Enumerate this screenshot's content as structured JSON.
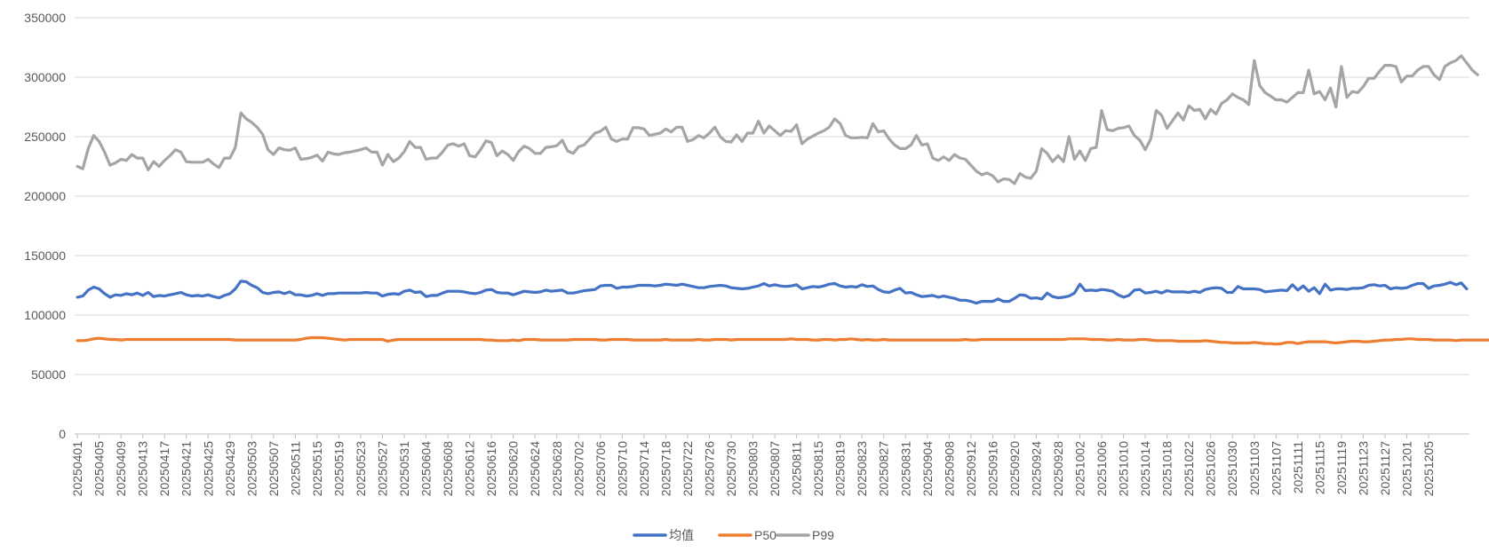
{
  "chart_data": {
    "type": "line",
    "title": "",
    "xlabel": "",
    "ylabel": "",
    "ylim": [
      0,
      350000
    ],
    "y_ticks": [
      0,
      50000,
      100000,
      150000,
      200000,
      250000,
      300000,
      350000
    ],
    "y_tick_labels": [
      "0",
      "50000",
      "100000",
      "150000",
      "200000",
      "250000",
      "300000",
      "350000"
    ],
    "grid": "horizontal",
    "legend_position": "bottom",
    "x_start": "2025-04-01",
    "x_end": "2025-12-08",
    "x_tick_labels": [
      "20250401",
      "20250405",
      "20250409",
      "20250413",
      "20250417",
      "20250421",
      "20250425",
      "20250429",
      "20250503",
      "20250507",
      "20250511",
      "20250515",
      "20250519",
      "20250523",
      "20250527",
      "20250531",
      "20250604",
      "20250608",
      "20250612",
      "20250616",
      "20250620",
      "20250624",
      "20250628",
      "20250702",
      "20250706",
      "20250710",
      "20250714",
      "20250718",
      "20250722",
      "20250726",
      "20250730",
      "20250803",
      "20250807",
      "20250811",
      "20250815",
      "20250819",
      "20250823",
      "20250827",
      "20250831",
      "20250904",
      "20250908",
      "20250912",
      "20250916",
      "20250920",
      "20250924",
      "20250928",
      "20251002",
      "20251006",
      "20251010",
      "20251014",
      "20251018",
      "20251022",
      "20251026",
      "20251030",
      "20251103",
      "20251107",
      "20251111",
      "20251115",
      "20251119",
      "20251123",
      "20251127",
      "20251201",
      "20251205"
    ],
    "series": [
      {
        "name": "均值",
        "color": "#4472C4",
        "values": [
          115000,
          116000,
          121000,
          123500,
          122000,
          118000,
          115000,
          117000,
          116500,
          118000,
          117000,
          118500,
          116500,
          119000,
          115500,
          116500,
          116000,
          117000,
          118000,
          119000,
          117000,
          116000,
          116500,
          116000,
          117000,
          115500,
          114500,
          116500,
          118000,
          122000,
          128500,
          128000,
          125000,
          123000,
          119000,
          118000,
          119000,
          119500,
          118000,
          119500,
          117000,
          117000,
          116000,
          116500,
          118000,
          116500,
          118000,
          118000,
          118500,
          118500,
          118500,
          118500,
          118500,
          119000,
          118500,
          118500,
          116000,
          117500,
          118000,
          117500,
          120000,
          121000,
          119000,
          119500,
          115500,
          116500,
          116500,
          118500,
          120000,
          120000,
          120000,
          119500,
          118500,
          118000,
          119000,
          121000,
          121500,
          119000,
          118500,
          118500,
          117000,
          118500,
          120000,
          119500,
          119000,
          119500,
          121000,
          120000,
          120500,
          121000,
          118500,
          118500,
          119500,
          120500,
          121000,
          121500,
          124500,
          125000,
          125000,
          122500,
          123500,
          123500,
          124000,
          125000,
          125000,
          125000,
          124500,
          125000,
          126000,
          125500,
          125000,
          126000,
          125000,
          124000,
          123000,
          123000,
          124000,
          124500,
          125000,
          124500,
          123000,
          122500,
          122000,
          122500,
          123500,
          124500,
          126500,
          124500,
          125500,
          124500,
          124000,
          124500,
          125500,
          122000,
          123000,
          124000,
          123500,
          124500,
          126000,
          126500,
          124500,
          123500,
          124000,
          123500,
          125500,
          124000,
          124500,
          121500,
          119500,
          119000,
          121000,
          122500,
          118500,
          119000,
          117000,
          115500,
          116000,
          116500,
          115000,
          116000,
          115000,
          114000,
          112500,
          112500,
          111500,
          110000,
          111500,
          111500,
          111500,
          113500,
          111500,
          111500,
          114000,
          117000,
          116500,
          114000,
          114500,
          113500,
          118500,
          115500,
          114500,
          115000,
          116000,
          118500,
          126000,
          120500,
          121000,
          120500,
          121500,
          121000,
          120000,
          117000,
          115000,
          116500,
          121000,
          121500,
          118500,
          119000,
          120000,
          118500,
          120500,
          119500,
          119500,
          119500,
          119000,
          120000,
          119000,
          121500,
          122500,
          123000,
          122500,
          119000,
          119000,
          124000,
          122000,
          122000,
          122000,
          121500,
          119500,
          120000,
          120500,
          121000,
          120500,
          125500,
          121000,
          124500,
          120000,
          123000,
          118000,
          126000,
          121000,
          122000,
          122000,
          121500,
          122500,
          122500,
          123000,
          125000,
          125500,
          124500,
          125000,
          122000,
          123000,
          122500,
          123000,
          125000,
          126500,
          126500,
          122500,
          124500,
          125000,
          126000,
          127500,
          125500,
          127000,
          122000
        ]
      },
      {
        "name": "P50",
        "color": "#ED7D31",
        "values": [
          78500,
          78500,
          79000,
          80000,
          80500,
          80000,
          79500,
          79500,
          79000,
          79500,
          79500,
          79500,
          79500,
          79500,
          79500,
          79500,
          79500,
          79500,
          79500,
          79500,
          79500,
          79500,
          79500,
          79500,
          79500,
          79500,
          79500,
          79500,
          79500,
          79000,
          79000,
          79000,
          79000,
          79000,
          79000,
          79000,
          79000,
          79000,
          79000,
          79000,
          79000,
          79500,
          80500,
          81000,
          81000,
          81000,
          80500,
          80000,
          79500,
          79000,
          79500,
          79500,
          79500,
          79500,
          79500,
          79500,
          79500,
          78000,
          79000,
          79500,
          79500,
          79500,
          79500,
          79500,
          79500,
          79500,
          79500,
          79500,
          79500,
          79500,
          79500,
          79500,
          79500,
          79500,
          79500,
          79000,
          79000,
          78500,
          78500,
          78500,
          79000,
          78500,
          79500,
          79500,
          79500,
          79000,
          79000,
          79000,
          79000,
          79000,
          79000,
          79500,
          79500,
          79500,
          79500,
          79500,
          79000,
          79000,
          79500,
          79500,
          79500,
          79500,
          79000,
          79000,
          79000,
          79000,
          79000,
          79000,
          79500,
          79000,
          79000,
          79000,
          79000,
          79000,
          79500,
          79000,
          79000,
          79500,
          79500,
          79500,
          79000,
          79500,
          79500,
          79500,
          79500,
          79500,
          79500,
          79500,
          79500,
          79500,
          79500,
          80000,
          79500,
          79500,
          79500,
          79000,
          79000,
          79500,
          79500,
          79000,
          79500,
          79500,
          80000,
          79500,
          79000,
          79500,
          79000,
          79000,
          79500,
          79000,
          79000,
          79000,
          79000,
          79000,
          79000,
          79000,
          79000,
          79000,
          79000,
          79000,
          79000,
          79000,
          79000,
          79500,
          79000,
          79000,
          79500,
          79500,
          79500,
          79500,
          79500,
          79500,
          79500,
          79500,
          79500,
          79500,
          79500,
          79500,
          79500,
          79500,
          79500,
          79500,
          80000,
          80000,
          80000,
          80000,
          79500,
          79500,
          79500,
          79000,
          79000,
          79500,
          79000,
          79000,
          79000,
          79500,
          79500,
          79000,
          78500,
          78500,
          78500,
          78500,
          78000,
          78000,
          78000,
          78000,
          78000,
          78500,
          78000,
          77500,
          77000,
          77000,
          76500,
          76500,
          76500,
          76500,
          77000,
          76500,
          76000,
          76000,
          75500,
          76000,
          77000,
          77000,
          76000,
          77000,
          77500,
          77500,
          77500,
          77500,
          77000,
          76500,
          77000,
          77500,
          78000,
          78000,
          77500,
          77500,
          78000,
          78500,
          79000,
          79000,
          79500,
          79500,
          80000,
          80000,
          79500,
          79500,
          79500,
          79000,
          79000,
          79000,
          79000,
          78500,
          79000,
          79000,
          79000,
          79000,
          79000,
          79000,
          79500,
          79000,
          79000,
          79500,
          79500,
          79500,
          79500,
          79000,
          79500,
          79000,
          79000,
          79500,
          79000,
          79500,
          79500,
          79000,
          79500,
          79500,
          80000,
          80000,
          79500,
          79500,
          80000,
          79500,
          79500,
          79500,
          79000,
          79500,
          79500,
          80000,
          80000,
          79500,
          80000,
          80000,
          79500,
          80000,
          79500,
          80000,
          80000,
          79500,
          80000,
          80000,
          80000,
          80000,
          80500,
          80500,
          80500,
          81000,
          81000,
          80500,
          80500,
          81000,
          81000,
          81000,
          81000,
          81000,
          81000,
          81000,
          81000,
          81000,
          81000,
          81000,
          81000,
          81000,
          81000,
          81000,
          80500,
          81000,
          81000
        ]
      },
      {
        "name": "P99",
        "color": "#A5A5A5",
        "values": [
          225000,
          223000,
          240000,
          251000,
          246000,
          237000,
          226000,
          228000,
          231000,
          230000,
          235000,
          232000,
          232000,
          222000,
          229000,
          225000,
          230000,
          234000,
          239000,
          237000,
          229000,
          228500,
          228500,
          228500,
          231000,
          227000,
          224000,
          232000,
          232000,
          241000,
          270000,
          265000,
          262000,
          258000,
          252000,
          239000,
          235000,
          240500,
          239000,
          238500,
          240500,
          231000,
          231500,
          232500,
          234500,
          229500,
          237000,
          235500,
          235000,
          236500,
          237000,
          238000,
          239000,
          240500,
          237000,
          237000,
          226000,
          235000,
          229000,
          232000,
          237500,
          246000,
          241000,
          241000,
          231000,
          232000,
          232000,
          237000,
          243000,
          244000,
          242000,
          244000,
          234000,
          233000,
          239000,
          246500,
          245000,
          234000,
          238000,
          235000,
          230000,
          237500,
          242000,
          240000,
          236000,
          236000,
          241000,
          241500,
          242500,
          247000,
          238000,
          236000,
          241500,
          243000,
          248000,
          253000,
          254500,
          258000,
          248000,
          246000,
          248000,
          248000,
          257500,
          257500,
          256500,
          251000,
          252000,
          253000,
          256500,
          254000,
          258000,
          258000,
          246000,
          247500,
          251000,
          249000,
          253000,
          258000,
          250000,
          246000,
          245500,
          251500,
          246000,
          253000,
          253000,
          263000,
          253000,
          259000,
          255000,
          251000,
          255000,
          254500,
          260000,
          244000,
          248000,
          250500,
          253000,
          255000,
          258000,
          265000,
          261000,
          251000,
          249000,
          249000,
          249500,
          249000,
          261000,
          254000,
          255000,
          248000,
          243000,
          240000,
          240000,
          243000,
          251000,
          243000,
          244000,
          232000,
          230000,
          233000,
          230000,
          235000,
          232000,
          231000,
          226000,
          221000,
          218000,
          219500,
          217000,
          212000,
          214500,
          214000,
          210500,
          219000,
          216000,
          215000,
          221000,
          240000,
          236000,
          229000,
          234000,
          229000,
          250000,
          231000,
          238000,
          230000,
          240000,
          241000,
          272000,
          256000,
          255000,
          257000,
          257500,
          259000,
          251000,
          247000,
          239000,
          248000,
          272000,
          268000,
          257000,
          263500,
          270000,
          264000,
          276000,
          272000,
          273000,
          265000,
          273000,
          269000,
          278000,
          281000,
          286000,
          283000,
          281000,
          277000,
          314000,
          293000,
          287000,
          284000,
          281000,
          281000,
          279000,
          283000,
          287000,
          287000,
          306000,
          286000,
          288000,
          281000,
          291000,
          275000,
          309000,
          283000,
          288000,
          287000,
          292000,
          299000,
          299000,
          305000,
          310000,
          310000,
          309000,
          296000,
          301000,
          301000,
          306000,
          309000,
          309000,
          302000,
          298000,
          309000,
          312000,
          314000,
          318000,
          312000,
          306000,
          302000
        ]
      }
    ]
  }
}
